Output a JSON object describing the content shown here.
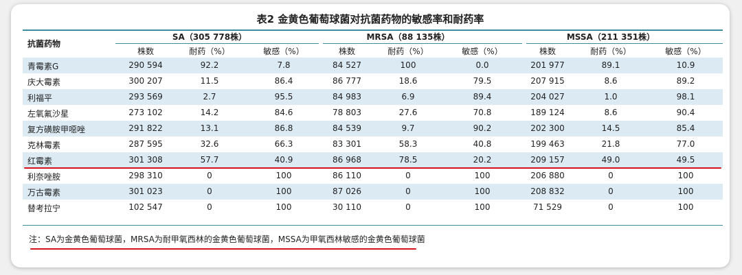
{
  "title": "表2  金黄色葡萄球菌对抗菌药物的敏感率和耐药率",
  "table": {
    "drug_header": "抗菌药物",
    "groups": [
      "SA（305 778株）",
      "MRSA（88 135株）",
      "MSSA（211 351株）"
    ],
    "subheaders": [
      "株数",
      "耐药（%）",
      "敏感（%）",
      "株数",
      "耐药（%）",
      "敏感（%）",
      "株数",
      "耐药（%）",
      "敏感（%）"
    ],
    "rows": [
      [
        "青霉素G",
        "290 594",
        "92.2",
        "7.8",
        "84 527",
        "100",
        "0.0",
        "201 977",
        "89.1",
        "10.9"
      ],
      [
        "庆大霉素",
        "300 207",
        "11.5",
        "86.4",
        "86 777",
        "18.6",
        "79.5",
        "207 915",
        "8.6",
        "89.2"
      ],
      [
        "利福平",
        "293 569",
        "2.7",
        "95.5",
        "84 983",
        "6.9",
        "89.4",
        "204 027",
        "1.0",
        "98.1"
      ],
      [
        "左氧氟沙星",
        "273 102",
        "14.2",
        "84.6",
        "78 803",
        "27.6",
        "70.8",
        "189 124",
        "8.6",
        "90.4"
      ],
      [
        "复方磺胺甲噁唑",
        "291 822",
        "13.1",
        "86.8",
        "84 539",
        "9.7",
        "90.2",
        "202 300",
        "14.5",
        "85.4"
      ],
      [
        "克林霉素",
        "287 595",
        "32.6",
        "66.3",
        "83 301",
        "58.3",
        "40.8",
        "199 463",
        "21.8",
        "77.0"
      ],
      [
        "红霉素",
        "301 308",
        "57.7",
        "40.9",
        "86 968",
        "78.5",
        "20.2",
        "209 157",
        "49.0",
        "49.5"
      ],
      [
        "利奈唑胺",
        "298 310",
        "0",
        "100",
        "86 110",
        "0",
        "100",
        "206 880",
        "0",
        "100"
      ],
      [
        "万古霉素",
        "301 023",
        "0",
        "100",
        "87 026",
        "0",
        "100",
        "208 832",
        "0",
        "100"
      ],
      [
        "替考拉宁",
        "102 547",
        "0",
        "100",
        "30 110",
        "0",
        "100",
        "71 529",
        "0",
        "100"
      ]
    ]
  },
  "note": "注：SA为金黄色葡萄球菌，MRSA为耐甲氧西林的金黄色葡萄球菌，MSSA为甲氧西林敏感的金黄色葡萄球菌"
}
